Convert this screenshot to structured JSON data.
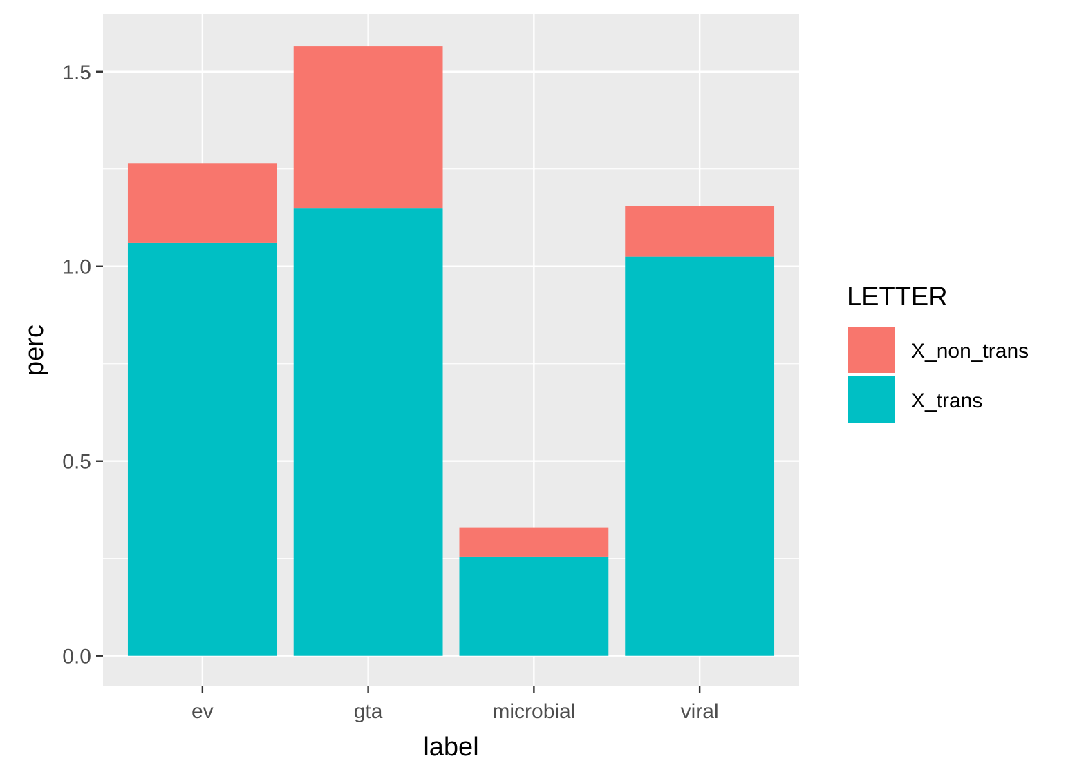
{
  "chart_data": {
    "type": "bar",
    "stacked": true,
    "categories": [
      "ev",
      "gta",
      "microbial",
      "viral"
    ],
    "series": [
      {
        "name": "X_trans",
        "values": [
          1.06,
          1.15,
          0.255,
          1.025
        ],
        "color": "#00BFC4"
      },
      {
        "name": "X_non_trans",
        "values": [
          0.205,
          0.415,
          0.075,
          0.13
        ],
        "color": "#F8766D"
      }
    ],
    "stack_order_top_to_bottom": [
      "X_non_trans",
      "X_trans"
    ],
    "xlabel": "label",
    "ylabel": "perc",
    "ylim": [
      -0.0785,
      1.6485
    ],
    "yticks": [
      0.0,
      0.5,
      1.0,
      1.5
    ],
    "ytick_labels": [
      "0.0",
      "0.5",
      "1.0",
      "1.5"
    ],
    "y_minor_ticks": [
      0.25,
      0.75,
      1.25
    ],
    "grid": true,
    "legend": {
      "title": "LETTER",
      "position": "right",
      "entries": [
        "X_non_trans",
        "X_trans"
      ]
    },
    "panel_background": "#EBEBEB",
    "gridline_color": "#FFFFFF"
  }
}
